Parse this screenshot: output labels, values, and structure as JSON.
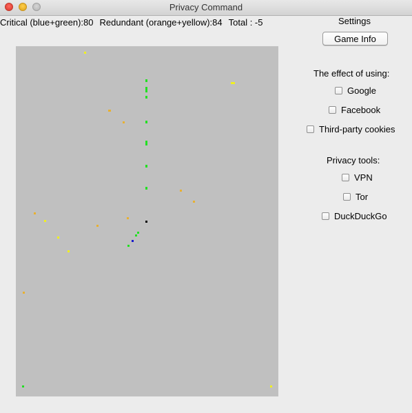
{
  "window": {
    "title": "Privacy Command"
  },
  "score": {
    "critical": "Critical (blue+green):80",
    "redundant": "Redundant (orange+yellow):84",
    "total": "Total : -5"
  },
  "settings": {
    "title": "Settings",
    "game_info_label": "Game Info",
    "effect_title": "The effect of using:",
    "effect_options": [
      "Google",
      "Facebook",
      "Third-party cookies"
    ],
    "tools_title": "Privacy tools:",
    "tools_options": [
      "VPN",
      "Tor",
      "DuckDuckGo"
    ]
  },
  "colors": {
    "board": "#c0c0c0",
    "green": "#22e022",
    "blue": "#1a1acc",
    "yellow": "#f0f020",
    "orange": "#e8b030",
    "black": "#000000"
  }
}
